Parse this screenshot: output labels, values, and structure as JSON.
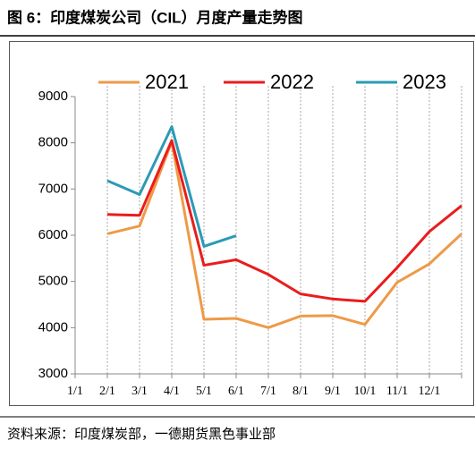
{
  "chart_data": {
    "type": "line",
    "title": "图 6：印度煤炭公司（CIL）月度产量走势图",
    "source": "资料来源：印度煤炭部，一德期货黑色事业部",
    "categories": [
      "1/1",
      "2/1",
      "3/1",
      "4/1",
      "5/1",
      "6/1",
      "7/1",
      "8/1",
      "9/1",
      "10/1",
      "11/1",
      "12/1",
      null
    ],
    "series": [
      {
        "name": "2021",
        "color": "#ee9a48",
        "values": [
          null,
          6030,
          6200,
          8020,
          4180,
          4200,
          4000,
          4250,
          4260,
          4070,
          4980,
          5380,
          6030
        ]
      },
      {
        "name": "2022",
        "color": "#ea1c1c",
        "values": [
          null,
          6450,
          6430,
          8050,
          5350,
          5470,
          5150,
          4730,
          4620,
          4570,
          5300,
          6080,
          6640
        ]
      },
      {
        "name": "2023",
        "color": "#2b9bb5",
        "values": [
          null,
          7180,
          6880,
          8350,
          5760,
          5990,
          null,
          null,
          null,
          null,
          null,
          null,
          null
        ]
      }
    ],
    "ylim": [
      3000,
      9000
    ],
    "yticks": [
      3000,
      4000,
      5000,
      6000,
      7000,
      8000,
      9000
    ],
    "grid": true,
    "legend": "top"
  }
}
